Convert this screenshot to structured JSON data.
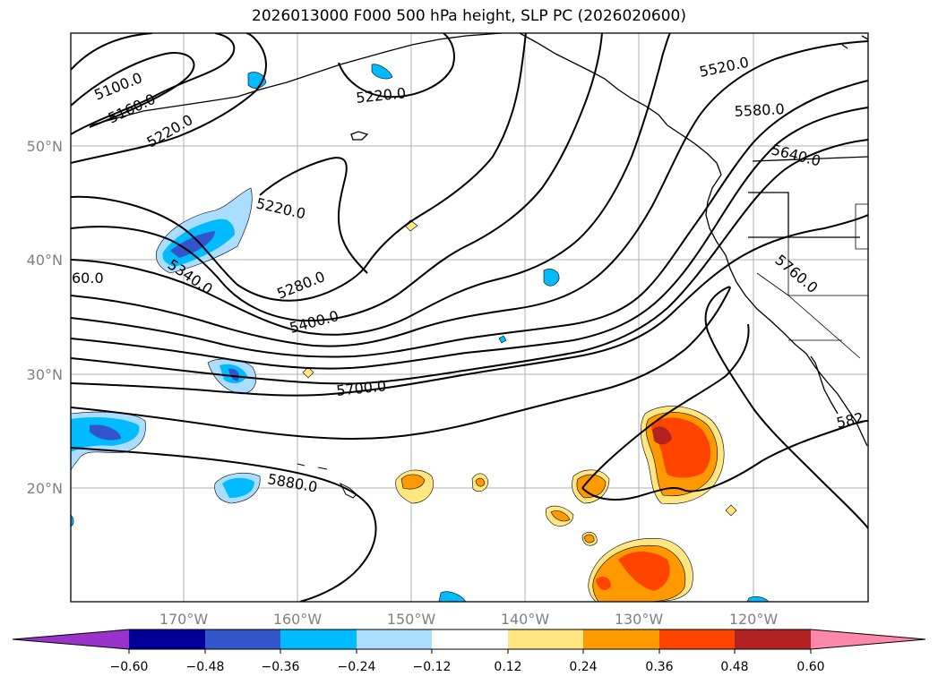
{
  "title": "2026013000 F000 500 hPa height, SLP PC (2026020600)",
  "axes": {
    "lat_labels": [
      "50°N",
      "40°N",
      "30°N",
      "20°N"
    ],
    "lon_labels": [
      "170°W",
      "160°W",
      "150°W",
      "140°W",
      "130°W",
      "120°W"
    ],
    "tick_color": "#808080"
  },
  "contour_labels": [
    "5100.0",
    "5160.0",
    "5220.0",
    "5220.0",
    "5220.0",
    "5340.0",
    "5280.0",
    "5400.0",
    "5700.0",
    "5880.0",
    "5520.0",
    "5580.0",
    "5640.0",
    "5760.0",
    "60.0",
    "582"
  ],
  "colorbar": {
    "ticks": [
      "−0.60",
      "−0.48",
      "−0.36",
      "−0.24",
      "−0.12",
      "0.12",
      "0.24",
      "0.36",
      "0.48",
      "0.60"
    ],
    "colors": [
      "#9933cc",
      "#000099",
      "#3355cc",
      "#00bbff",
      "#aaddff",
      "#ffffff",
      "#ffe680",
      "#ff9900",
      "#ff4400",
      "#b22222",
      "#ff88aa"
    ]
  },
  "colors": {
    "pos_light": "#ffe680",
    "pos_mid": "#ff9900",
    "pos_strong": "#ff4400",
    "pos_max": "#b22222",
    "neg_light": "#aaddff",
    "neg_mid": "#00bbff",
    "neg_strong": "#3355cc"
  }
}
